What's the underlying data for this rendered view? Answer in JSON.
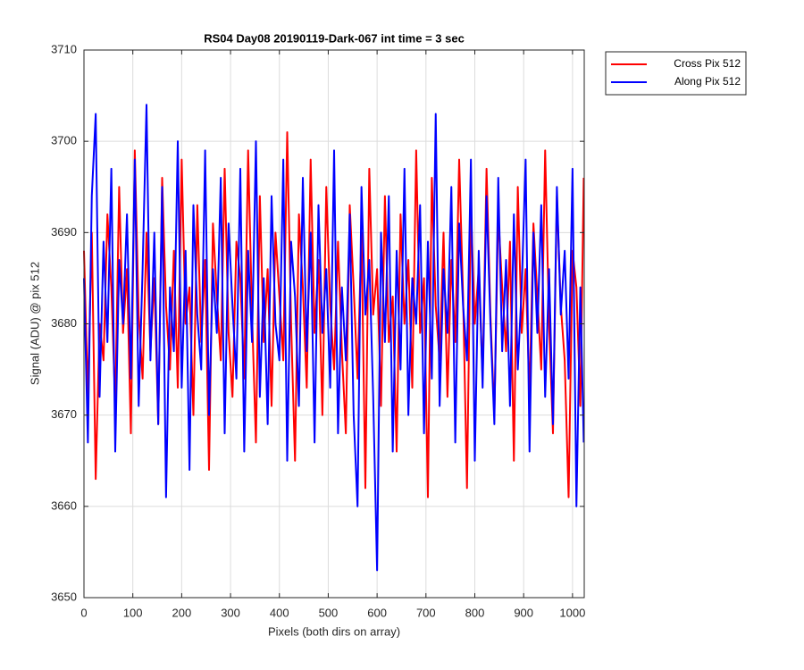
{
  "chart_data": {
    "type": "line",
    "title": "RS04 Day08 20190119-Dark-067 int time = 3 sec",
    "x_label": "Pixels (both dirs on array)",
    "y_label": "Signal (ADU) @ pix 512",
    "xlim": [
      0,
      1024
    ],
    "ylim": [
      3650,
      3710
    ],
    "xticks": [
      0,
      100,
      200,
      300,
      400,
      500,
      600,
      700,
      800,
      900,
      1000
    ],
    "yticks": [
      3650,
      3660,
      3670,
      3680,
      3690,
      3700,
      3710
    ],
    "grid": true,
    "legend": "northeastoutside",
    "x": [
      0,
      8,
      16,
      24,
      32,
      40,
      48,
      56,
      64,
      72,
      80,
      88,
      96,
      104,
      112,
      120,
      128,
      136,
      144,
      152,
      160,
      168,
      176,
      184,
      192,
      200,
      208,
      216,
      224,
      232,
      240,
      248,
      256,
      264,
      272,
      280,
      288,
      296,
      304,
      312,
      320,
      328,
      336,
      344,
      352,
      360,
      368,
      376,
      384,
      392,
      400,
      408,
      416,
      424,
      432,
      440,
      448,
      456,
      464,
      472,
      480,
      488,
      496,
      504,
      512,
      520,
      528,
      536,
      544,
      552,
      560,
      568,
      576,
      584,
      592,
      600,
      608,
      616,
      624,
      632,
      640,
      648,
      656,
      664,
      672,
      680,
      688,
      696,
      704,
      712,
      720,
      728,
      736,
      744,
      752,
      760,
      768,
      776,
      784,
      792,
      800,
      808,
      816,
      824,
      832,
      840,
      848,
      856,
      864,
      872,
      880,
      888,
      896,
      904,
      912,
      920,
      928,
      936,
      944,
      952,
      960,
      968,
      976,
      984,
      992,
      1000,
      1008,
      1016,
      1023
    ],
    "series": [
      {
        "name": "Cross Pix 512",
        "color": "#ff0000",
        "values": [
          3688,
          3672,
          3690,
          3663,
          3680,
          3676,
          3692,
          3684,
          3671,
          3695,
          3679,
          3686,
          3668,
          3699,
          3681,
          3674,
          3690,
          3677,
          3685,
          3669,
          3696,
          3682,
          3675,
          3688,
          3673,
          3698,
          3680,
          3684,
          3670,
          3693,
          3678,
          3687,
          3664,
          3691,
          3683,
          3676,
          3697,
          3679,
          3672,
          3689,
          3685,
          3674,
          3699,
          3681,
          3667,
          3694,
          3678,
          3686,
          3671,
          3690,
          3683,
          3676,
          3701,
          3680,
          3665,
          3692,
          3684,
          3673,
          3698,
          3679,
          3687,
          3670,
          3695,
          3682,
          3675,
          3689,
          3677,
          3668,
          3693,
          3684,
          3674,
          3690,
          3662,
          3697,
          3681,
          3686,
          3671,
          3694,
          3678,
          3683,
          3666,
          3692,
          3680,
          3687,
          3673,
          3699,
          3679,
          3685,
          3661,
          3696,
          3682,
          3676,
          3690,
          3672,
          3687,
          3678,
          3698,
          3683,
          3662,
          3693,
          3680,
          3686,
          3674,
          3697,
          3681,
          3670,
          3692,
          3684,
          3677,
          3689,
          3665,
          3695,
          3679,
          3686,
          3672,
          3691,
          3683,
          3675,
          3699,
          3680,
          3668,
          3694,
          3682,
          3676,
          3661,
          3688,
          3684,
          3671,
          3696
        ]
      },
      {
        "name": "Along Pix 512",
        "color": "#0000ff",
        "values": [
          3685,
          3667,
          3694,
          3703,
          3672,
          3689,
          3678,
          3697,
          3666,
          3687,
          3680,
          3692,
          3674,
          3698,
          3671,
          3686,
          3704,
          3676,
          3690,
          3669,
          3695,
          3661,
          3684,
          3677,
          3700,
          3673,
          3688,
          3664,
          3693,
          3681,
          3675,
          3699,
          3670,
          3686,
          3679,
          3696,
          3668,
          3691,
          3682,
          3674,
          3697,
          3666,
          3688,
          3678,
          3700,
          3672,
          3685,
          3669,
          3694,
          3680,
          3676,
          3698,
          3665,
          3689,
          3683,
          3671,
          3696,
          3677,
          3690,
          3667,
          3693,
          3679,
          3686,
          3673,
          3699,
          3668,
          3684,
          3676,
          3692,
          3670,
          3660,
          3695,
          3681,
          3687,
          3672,
          3653,
          3690,
          3678,
          3694,
          3666,
          3688,
          3675,
          3697,
          3670,
          3685,
          3680,
          3693,
          3668,
          3689,
          3674,
          3703,
          3671,
          3686,
          3679,
          3695,
          3667,
          3691,
          3682,
          3676,
          3698,
          3665,
          3688,
          3673,
          3694,
          3680,
          3669,
          3696,
          3677,
          3687,
          3671,
          3692,
          3675,
          3684,
          3698,
          3666,
          3690,
          3679,
          3693,
          3672,
          3686,
          3669,
          3695,
          3681,
          3688,
          3674,
          3697,
          3660,
          3684,
          3667
        ]
      }
    ]
  }
}
